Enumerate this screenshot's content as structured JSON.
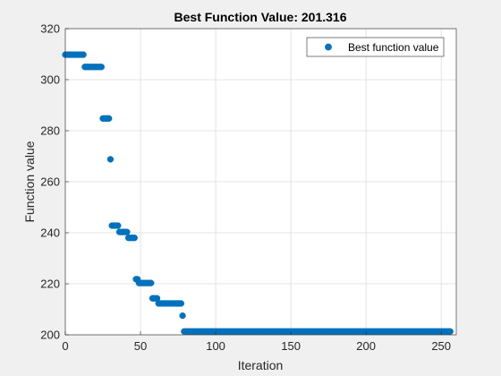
{
  "chart_data": {
    "type": "scatter",
    "title": "Best Function Value: 201.316",
    "xlabel": "Iteration",
    "ylabel": "Function value",
    "xlim": [
      0,
      260
    ],
    "ylim": [
      200,
      320
    ],
    "xticks": [
      0,
      50,
      100,
      150,
      200,
      250
    ],
    "yticks": [
      200,
      220,
      240,
      260,
      280,
      300,
      320
    ],
    "grid": true,
    "legend": {
      "placement": "top-right"
    },
    "marker_color": "#0072BD",
    "series": [
      {
        "name": "Best function value",
        "segments": [
          {
            "x_start": 0,
            "x_end": 13,
            "y": 309.8
          },
          {
            "x_start": 13,
            "x_end": 25,
            "y": 305.0
          },
          {
            "x_start": 25,
            "x_end": 30,
            "y": 284.8
          },
          {
            "x_start": 30,
            "x_end": 31,
            "y": 268.8
          },
          {
            "x_start": 31,
            "x_end": 36,
            "y": 242.8
          },
          {
            "x_start": 36,
            "x_end": 42,
            "y": 240.3
          },
          {
            "x_start": 42,
            "x_end": 47,
            "y": 238.0
          },
          {
            "x_start": 47,
            "x_end": 49,
            "y": 221.8
          },
          {
            "x_start": 49,
            "x_end": 58,
            "y": 220.3
          },
          {
            "x_start": 58,
            "x_end": 62,
            "y": 214.3
          },
          {
            "x_start": 62,
            "x_end": 78,
            "y": 212.3
          },
          {
            "x_start": 78,
            "x_end": 79,
            "y": 207.5
          },
          {
            "x_start": 79,
            "x_end": 257,
            "y": 201.316
          }
        ]
      }
    ]
  }
}
